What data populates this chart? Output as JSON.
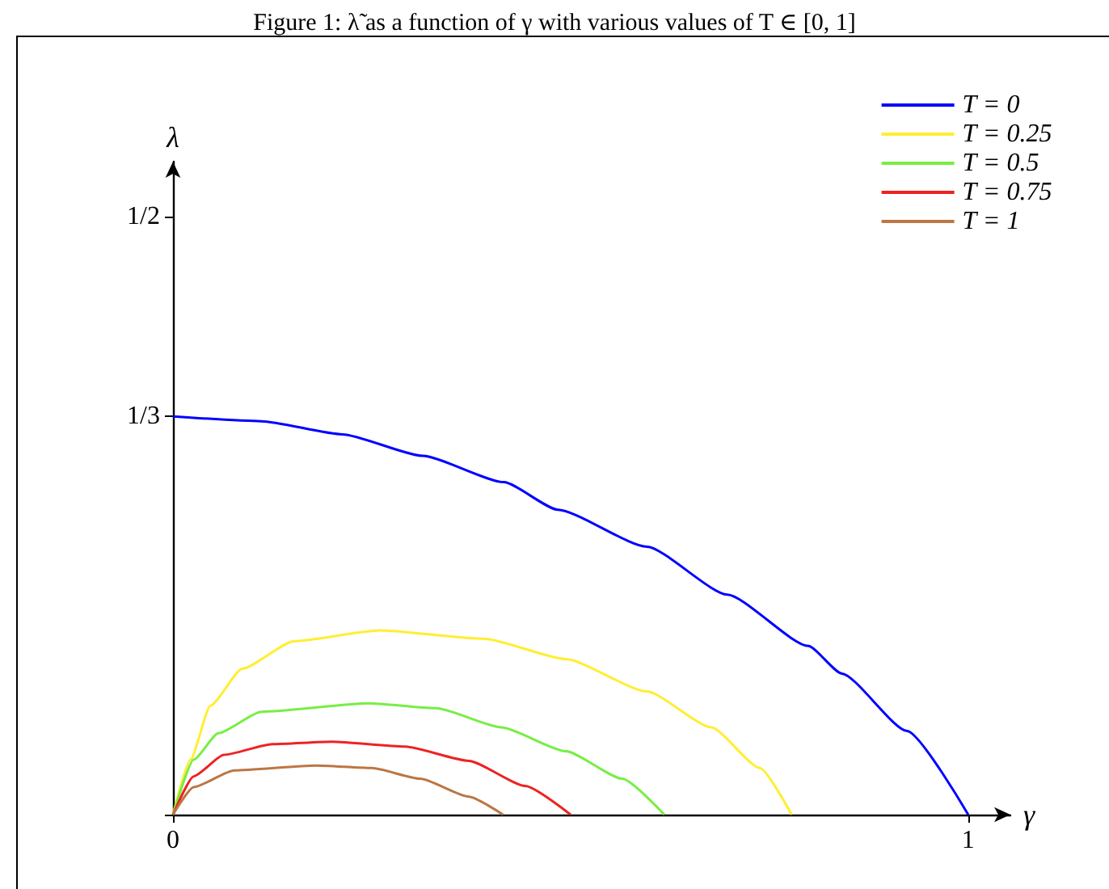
{
  "chart_data": {
    "type": "line",
    "title": "Figure 1: λ̃ as a function of γ with various values of T ∈ [0, 1]",
    "xlabel": "γ",
    "ylabel": "λ",
    "xlim": [
      0,
      1.053
    ],
    "ylim": [
      0,
      0.546
    ],
    "xticks": [
      0,
      1
    ],
    "yticks": [
      {
        "value": 0,
        "label": null
      },
      {
        "value": 0.3333,
        "label": "1/3"
      },
      {
        "value": 0.5,
        "label": "1/2"
      }
    ],
    "grid": false,
    "legend": "top right",
    "marker": "none",
    "line_style": "solid",
    "series": [
      {
        "name": "T = 0",
        "color": "#0000ff",
        "x": [
          0,
          0.111,
          0.213,
          0.314,
          0.416,
          0.484,
          0.596,
          0.697,
          0.799,
          0.841,
          0.923,
          1
        ],
        "values": [
          0.333,
          0.329,
          0.318,
          0.3,
          0.278,
          0.255,
          0.224,
          0.184,
          0.141,
          0.118,
          0.07,
          0
        ]
      },
      {
        "name": "T = 0.25",
        "color": "#ffee33",
        "x": [
          0,
          0.022,
          0.047,
          0.087,
          0.152,
          0.26,
          0.392,
          0.494,
          0.596,
          0.677,
          0.738,
          0.778
        ],
        "values": [
          0,
          0.046,
          0.091,
          0.122,
          0.145,
          0.154,
          0.147,
          0.13,
          0.103,
          0.073,
          0.039,
          0
        ]
      },
      {
        "name": "T = 0.5",
        "color": "#77ee44",
        "x": [
          0,
          0.026,
          0.057,
          0.111,
          0.246,
          0.331,
          0.413,
          0.494,
          0.565,
          0.618
        ],
        "values": [
          0,
          0.046,
          0.068,
          0.086,
          0.093,
          0.089,
          0.073,
          0.053,
          0.03,
          0
        ]
      },
      {
        "name": "T = 0.75",
        "color": "#ee2222",
        "x": [
          0,
          0.026,
          0.064,
          0.125,
          0.2,
          0.291,
          0.372,
          0.443,
          0.5
        ],
        "values": [
          0,
          0.032,
          0.05,
          0.059,
          0.061,
          0.057,
          0.045,
          0.024,
          0
        ]
      },
      {
        "name": "T = 1",
        "color": "#bb7744",
        "x": [
          0,
          0.026,
          0.077,
          0.179,
          0.25,
          0.311,
          0.372,
          0.415
        ],
        "values": [
          0,
          0.023,
          0.037,
          0.041,
          0.039,
          0.03,
          0.015,
          0
        ]
      }
    ]
  }
}
